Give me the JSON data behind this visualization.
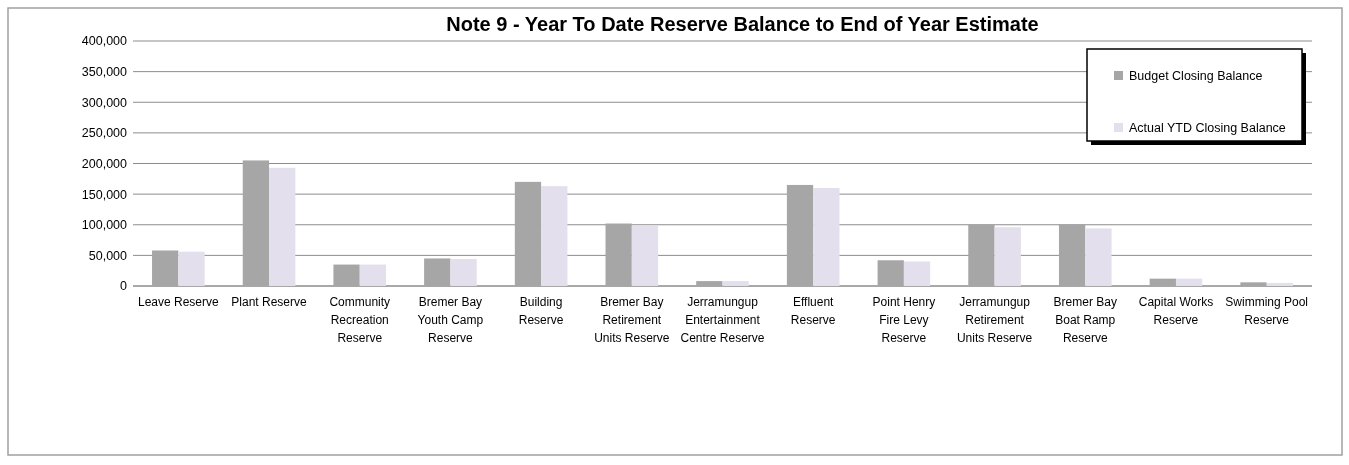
{
  "chart_data": {
    "type": "bar",
    "title": "Note 9 - Year To Date Reserve Balance to End of Year Estimate",
    "categories": [
      "Leave Reserve",
      "Plant Reserve",
      "Community Recreation Reserve",
      "Bremer Bay Youth Camp Reserve",
      "Building Reserve",
      "Bremer Bay Retirement Units Reserve",
      "Jerramungup Entertainment Centre Reserve",
      "Effluent Reserve",
      "Point Henry Fire Levy Reserve",
      "Jerramungup Retirement Units Reserve",
      "Bremer Bay Boat Ramp Reserve",
      "Capital Works Reserve",
      "Swimming Pool Reserve"
    ],
    "series": [
      {
        "name": "Budget Closing Balance",
        "color": "#a6a6a6",
        "values": [
          58000,
          205000,
          35000,
          45000,
          170000,
          102000,
          8000,
          165000,
          42000,
          100000,
          100000,
          12000,
          6000
        ]
      },
      {
        "name": "Actual YTD Closing Balance",
        "color": "#e4dfec",
        "values": [
          56000,
          193000,
          35000,
          44000,
          163000,
          99000,
          8000,
          160000,
          40000,
          96000,
          94000,
          12000,
          5000
        ]
      }
    ],
    "ylim": [
      0,
      400000
    ],
    "yticks": [
      0,
      {
        "value": 50000,
        "label": "50,000"
      },
      {
        "value": 100000,
        "label": "100,000"
      },
      {
        "value": 150000,
        "label": "150,000"
      },
      {
        "value": 200000,
        "label": "200,000"
      },
      {
        "value": 250000,
        "label": "250,000"
      },
      {
        "value": 300000,
        "label": "300,000"
      },
      {
        "value": 350000,
        "label": "350,000"
      },
      {
        "value": 400000,
        "label": "400,000"
      }
    ],
    "grid": "y",
    "legend": "top right"
  }
}
